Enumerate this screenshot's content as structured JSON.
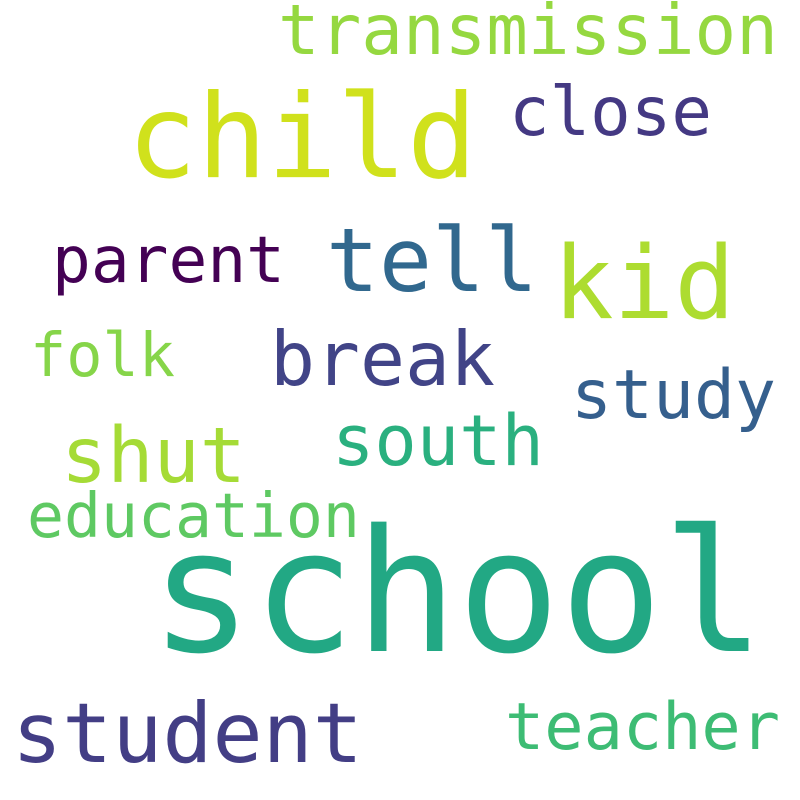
{
  "words": {
    "school": {
      "text": "school",
      "color": "#22a884"
    },
    "child": {
      "text": "child",
      "color": "#d0e11c"
    },
    "kid": {
      "text": "kid",
      "color": "#addc30"
    },
    "tell": {
      "text": "tell",
      "color": "#31688e"
    },
    "student": {
      "text": "student",
      "color": "#433e85"
    },
    "break": {
      "text": "break",
      "color": "#414487"
    },
    "shut": {
      "text": "shut",
      "color": "#a5db36"
    },
    "south": {
      "text": "south",
      "color": "#2ab07f"
    },
    "teacher": {
      "text": "teacher",
      "color": "#3dbc74"
    },
    "transmission": {
      "text": "transmission",
      "color": "#95d840"
    },
    "close": {
      "text": "close",
      "color": "#443983"
    },
    "parent": {
      "text": "parent",
      "color": "#440154"
    },
    "study": {
      "text": "study",
      "color": "#355f8d"
    },
    "folk": {
      "text": "folk",
      "color": "#86d549"
    },
    "education": {
      "text": "education",
      "color": "#5ec962"
    }
  }
}
